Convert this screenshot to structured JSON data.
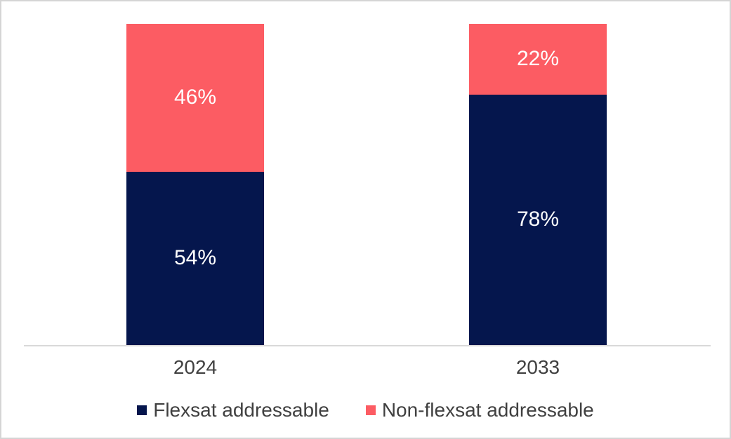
{
  "chart_data": {
    "type": "bar",
    "stacked": true,
    "orientation": "vertical",
    "categories": [
      "2024",
      "2033"
    ],
    "series": [
      {
        "name": "Flexsat addressable",
        "color": "#05164d",
        "values": [
          54,
          78
        ],
        "labels": [
          "54%",
          "78%"
        ]
      },
      {
        "name": "Non-flexsat addressable",
        "color": "#fc5c63",
        "values": [
          46,
          22
        ],
        "labels": [
          "46%",
          "22%"
        ]
      }
    ],
    "total": 100,
    "value_format": "percent",
    "title": "",
    "xlabel": "",
    "ylabel": "",
    "ylim": [
      0,
      100
    ],
    "grid": false,
    "legend_position": "bottom",
    "axis_line_color": "#d9d9d9",
    "category_label_color": "#404040",
    "legend_text_color": "#404040",
    "data_label_color": "#ffffff"
  }
}
